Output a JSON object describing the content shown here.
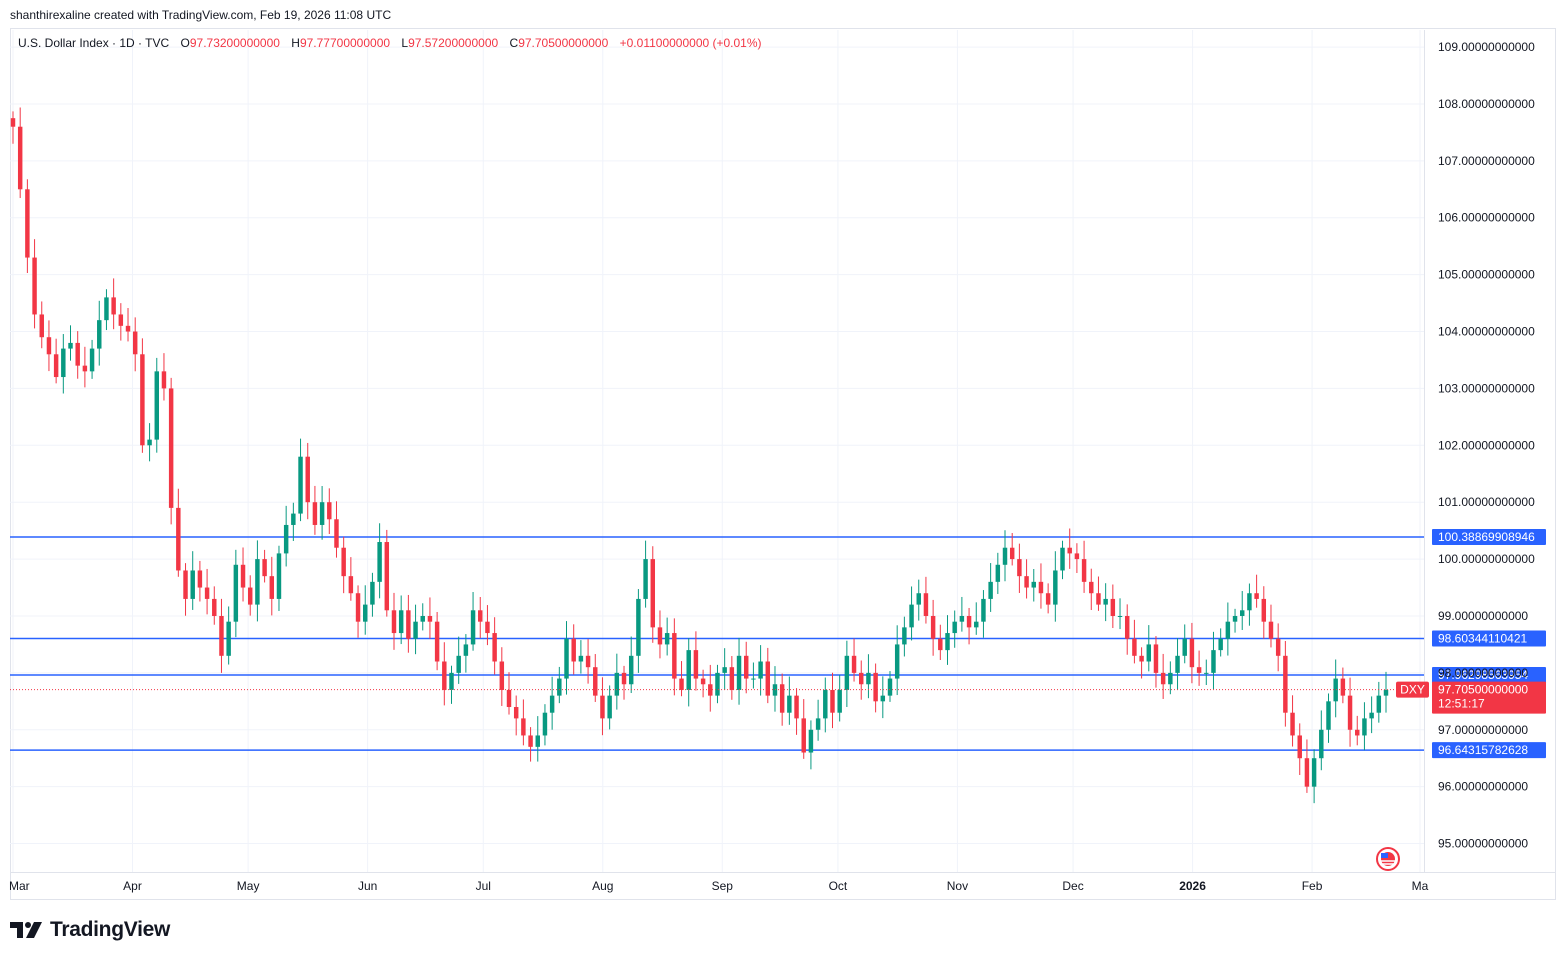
{
  "caption": "shanthirexaline created with TradingView.com, Feb 19, 2026 11:08 UTC",
  "legend": {
    "symbol": "U.S. Dollar Index · 1D · TVC",
    "open_label": "O",
    "open_value": "97.73200000000",
    "high_label": "H",
    "high_value": "97.77700000000",
    "low_label": "L",
    "low_value": "97.57200000000",
    "close_label": "C",
    "close_value": "97.70500000000",
    "change": "+0.01100000000 (+0.01%)"
  },
  "footer": {
    "brand": "TradingView"
  },
  "colors": {
    "up": "#089981",
    "down": "#f23645",
    "level": "#2962ff",
    "grid": "#f0f3fa",
    "text": "#131722"
  },
  "chart_data": {
    "type": "candlestick",
    "title": "U.S. Dollar Index · 1D · TVC",
    "ylim": [
      94.5,
      109.3
    ],
    "y_ticks": [
      {
        "value": 109,
        "label": "109.00000000000"
      },
      {
        "value": 108,
        "label": "108.00000000000"
      },
      {
        "value": 107,
        "label": "107.00000000000"
      },
      {
        "value": 106,
        "label": "106.00000000000"
      },
      {
        "value": 105,
        "label": "105.00000000000"
      },
      {
        "value": 104,
        "label": "104.00000000000"
      },
      {
        "value": 103,
        "label": "103.00000000000"
      },
      {
        "value": 102,
        "label": "102.00000000000"
      },
      {
        "value": 101,
        "label": "101.00000000000"
      },
      {
        "value": 100,
        "label": "100.00000000000"
      },
      {
        "value": 99,
        "label": "99.00000000000"
      },
      {
        "value": 98,
        "label": "98.00000000000"
      },
      {
        "value": 97,
        "label": "97.00000000000"
      },
      {
        "value": 96,
        "label": "96.00000000000"
      },
      {
        "value": 95,
        "label": "95.00000000000"
      }
    ],
    "x_ticks": [
      {
        "label": "Mar",
        "day": 0
      },
      {
        "label": "Apr",
        "day": 31
      },
      {
        "label": "May",
        "day": 61
      },
      {
        "label": "Jun",
        "day": 92
      },
      {
        "label": "Jul",
        "day": 122
      },
      {
        "label": "Aug",
        "day": 153
      },
      {
        "label": "Sep",
        "day": 184
      },
      {
        "label": "Oct",
        "day": 214
      },
      {
        "label": "Nov",
        "day": 245
      },
      {
        "label": "Dec",
        "day": 275
      },
      {
        "label": "2026",
        "day": 306,
        "bold": true
      },
      {
        "label": "Feb",
        "day": 337
      },
      {
        "label": "Ma",
        "day": 365
      }
    ],
    "levels": [
      {
        "value": 100.38869908946,
        "label": "100.38869908946"
      },
      {
        "value": 98.60344110421,
        "label": "98.60344110421"
      },
      {
        "value": 97.96298563954,
        "label": "97.96298563954"
      },
      {
        "value": 96.64315782628,
        "label": "96.64315782628"
      }
    ],
    "last_price": {
      "value": 97.705,
      "label": "97.70500000000",
      "countdown": "12:51:17",
      "tag": "DXY"
    },
    "closes": [
      107.6,
      106.5,
      105.3,
      104.3,
      103.9,
      103.6,
      103.2,
      103.7,
      103.8,
      103.4,
      103.3,
      103.7,
      104.2,
      104.6,
      104.3,
      104.1,
      104.0,
      103.6,
      102.0,
      102.1,
      103.3,
      103.0,
      100.9,
      99.8,
      99.3,
      99.8,
      99.5,
      99.3,
      99.0,
      98.3,
      98.9,
      99.9,
      99.5,
      99.2,
      100.0,
      99.7,
      99.3,
      100.1,
      100.6,
      100.8,
      101.8,
      101.0,
      100.6,
      101.0,
      100.7,
      100.2,
      99.7,
      99.4,
      98.9,
      99.2,
      99.6,
      100.3,
      99.1,
      98.7,
      99.1,
      98.6,
      98.9,
      99.0,
      98.9,
      98.2,
      97.7,
      98.0,
      98.3,
      98.5,
      99.1,
      98.9,
      98.7,
      98.2,
      97.7,
      97.4,
      97.2,
      96.9,
      96.7,
      96.9,
      97.3,
      97.6,
      97.9,
      98.6,
      98.2,
      98.3,
      98.1,
      97.6,
      97.2,
      97.6,
      98.0,
      97.8,
      98.3,
      99.3,
      100.0,
      98.8,
      98.5,
      98.7,
      97.9,
      97.7,
      98.4,
      97.9,
      97.8,
      97.6,
      98.0,
      98.1,
      97.7,
      98.3,
      97.9,
      97.9,
      98.2,
      97.6,
      97.8,
      97.3,
      97.6,
      97.2,
      96.6,
      97.0,
      97.2,
      97.7,
      97.3,
      97.7,
      98.3,
      98.0,
      97.8,
      98.0,
      97.5,
      97.6,
      97.9,
      98.5,
      98.8,
      99.2,
      99.4,
      99.0,
      98.6,
      98.4,
      98.7,
      98.9,
      99.0,
      98.8,
      98.9,
      99.3,
      99.6,
      99.9,
      100.2,
      100.0,
      99.7,
      99.5,
      99.6,
      99.4,
      99.2,
      99.8,
      100.2,
      100.1,
      100.0,
      99.6,
      99.4,
      99.2,
      99.3,
      99.0,
      99.0,
      98.6,
      98.3,
      98.2,
      98.5,
      98.0,
      97.8,
      98.0,
      98.3,
      98.6,
      98.1,
      98.0,
      98.0,
      98.4,
      98.6,
      98.9,
      99.0,
      99.1,
      99.4,
      99.3,
      98.9,
      98.6,
      98.3,
      97.3,
      96.9,
      96.5,
      96.0,
      96.5,
      97.0,
      97.5,
      97.9,
      97.6,
      97.0,
      96.9,
      97.2,
      97.3,
      97.6,
      97.7
    ]
  }
}
